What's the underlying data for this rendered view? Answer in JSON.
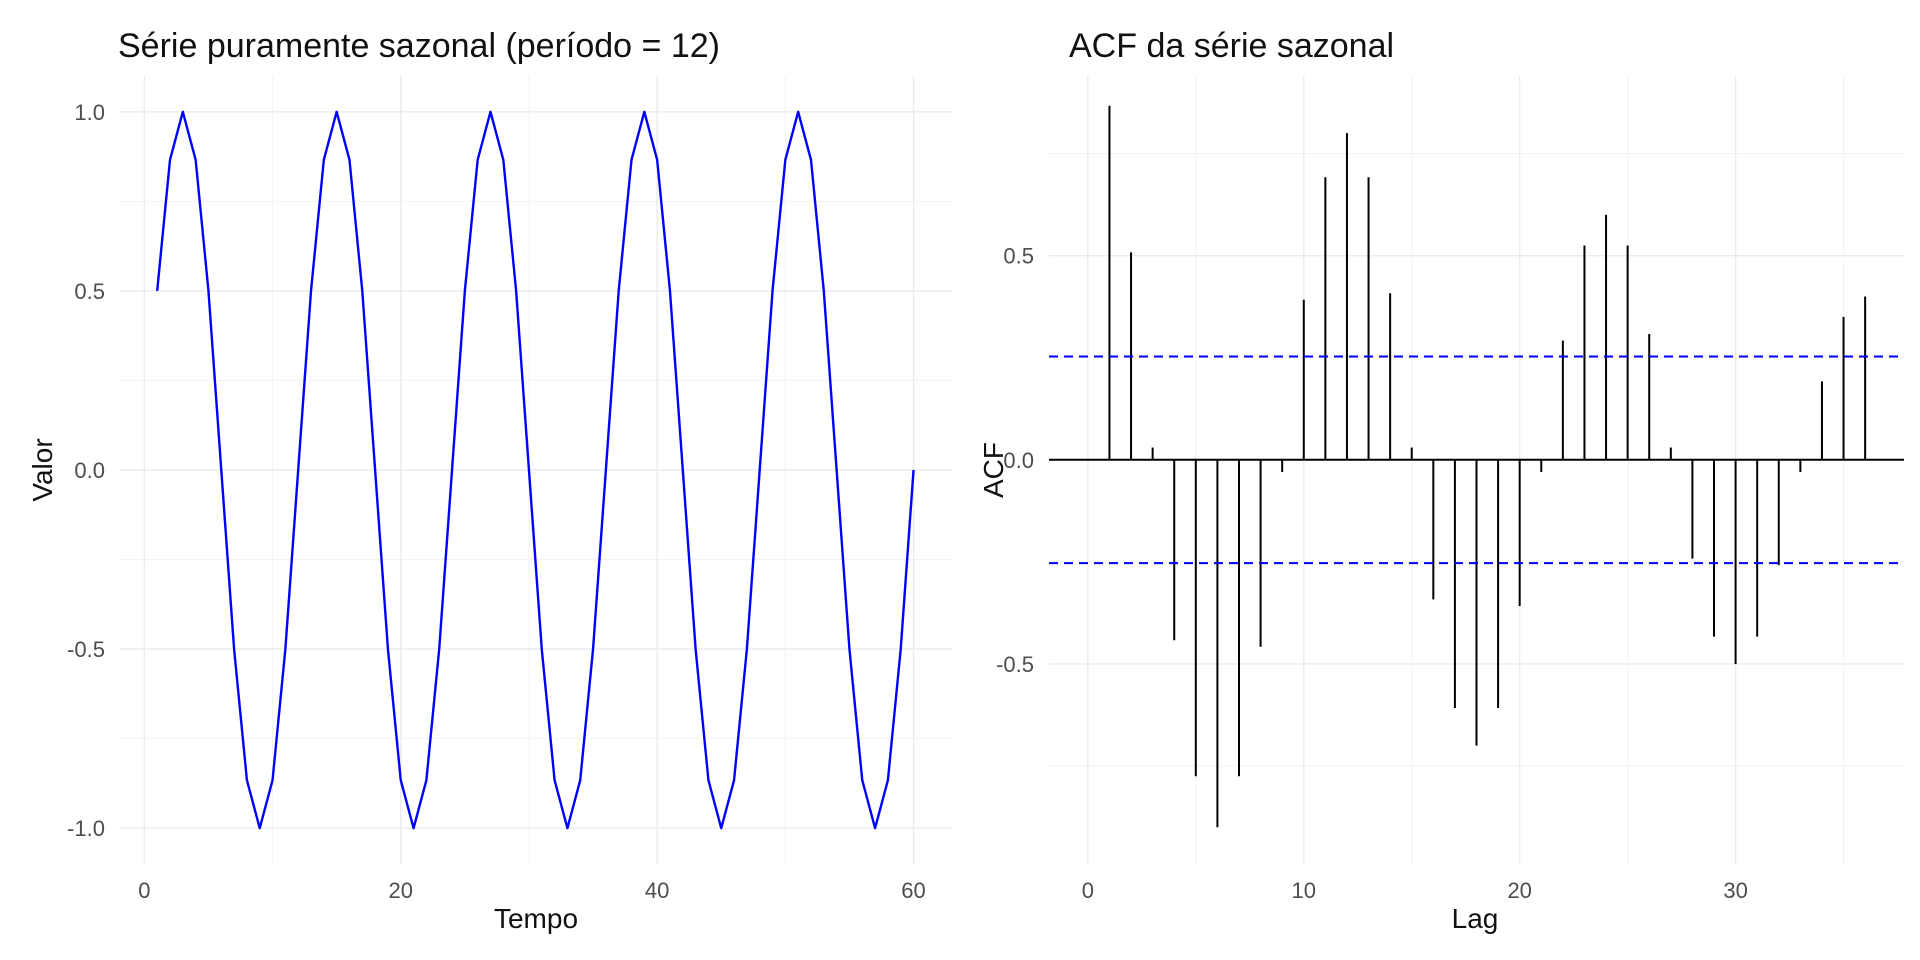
{
  "chart_data": [
    {
      "type": "line",
      "title": "Série puramente sazonal (período = 12)",
      "xlabel": "Tempo",
      "ylabel": "Valor",
      "xlim": [
        -1.9,
        63.0
      ],
      "ylim": [
        -1.1,
        1.1
      ],
      "xticks": [
        0,
        20,
        40,
        60
      ],
      "yticks": [
        -1.0,
        -0.5,
        0.0,
        0.5,
        1.0
      ],
      "xtick_labels": [
        "0",
        "20",
        "40",
        "60"
      ],
      "ytick_labels": [
        "-1.0",
        "-0.5",
        "0.0",
        "0.5",
        "1.0"
      ],
      "grid": true,
      "series": [
        {
          "color": "#0000ff",
          "x": [
            1,
            2,
            3,
            4,
            5,
            6,
            7,
            8,
            9,
            10,
            11,
            12,
            13,
            14,
            15,
            16,
            17,
            18,
            19,
            20,
            21,
            22,
            23,
            24,
            25,
            26,
            27,
            28,
            29,
            30,
            31,
            32,
            33,
            34,
            35,
            36,
            37,
            38,
            39,
            40,
            41,
            42,
            43,
            44,
            45,
            46,
            47,
            48,
            49,
            50,
            51,
            52,
            53,
            54,
            55,
            56,
            57,
            58,
            59,
            60
          ],
          "y": [
            0.5,
            0.866,
            1,
            0.866,
            0.5,
            0,
            -0.5,
            -0.866,
            -1,
            -0.866,
            -0.5,
            0,
            0.5,
            0.866,
            1,
            0.866,
            0.5,
            0,
            -0.5,
            -0.866,
            -1,
            -0.866,
            -0.5,
            0,
            0.5,
            0.866,
            1,
            0.866,
            0.5,
            0,
            -0.5,
            -0.866,
            -1,
            -0.866,
            -0.5,
            0,
            0.5,
            0.866,
            1,
            0.866,
            0.5,
            0,
            -0.5,
            -0.866,
            -1,
            -0.866,
            -0.5,
            0,
            0.5,
            0.866,
            1,
            0.866,
            0.5,
            0,
            -0.5,
            -0.866,
            -1,
            -0.866,
            -0.5,
            0
          ]
        }
      ]
    },
    {
      "type": "bar",
      "title": "ACF da série sazonal",
      "xlabel": "Lag",
      "ylabel": "ACF",
      "xlim": [
        -1.8,
        37.8
      ],
      "ylim": [
        -0.99,
        0.94
      ],
      "xticks": [
        0,
        10,
        20,
        30
      ],
      "yticks": [
        -0.5,
        0.0,
        0.5
      ],
      "xtick_labels": [
        "0",
        "10",
        "20",
        "30"
      ],
      "ytick_labels": [
        "-0.5",
        "0.0",
        "0.5"
      ],
      "grid": true,
      "zero_line_color": "#000000",
      "bar_color": "#000000",
      "confidence_bound": 0.253,
      "confidence_color": "#0000ff",
      "lags": [
        1,
        2,
        3,
        4,
        5,
        6,
        7,
        8,
        9,
        10,
        11,
        12,
        13,
        14,
        15,
        16,
        17,
        18,
        19,
        20,
        21,
        22,
        23,
        24,
        25,
        26,
        27,
        28,
        29,
        30,
        31,
        32,
        33,
        34,
        35,
        36
      ],
      "values": [
        0.867,
        0.508,
        0.03,
        -0.442,
        -0.775,
        -0.9,
        -0.775,
        -0.458,
        -0.03,
        0.392,
        0.692,
        0.8,
        0.692,
        0.408,
        0.03,
        -0.342,
        -0.608,
        -0.7,
        -0.608,
        -0.358,
        -0.03,
        0.292,
        0.525,
        0.6,
        0.525,
        0.308,
        0.03,
        -0.242,
        -0.433,
        -0.5,
        -0.433,
        -0.258,
        -0.03,
        0.192,
        0.35,
        0.4
      ]
    }
  ]
}
